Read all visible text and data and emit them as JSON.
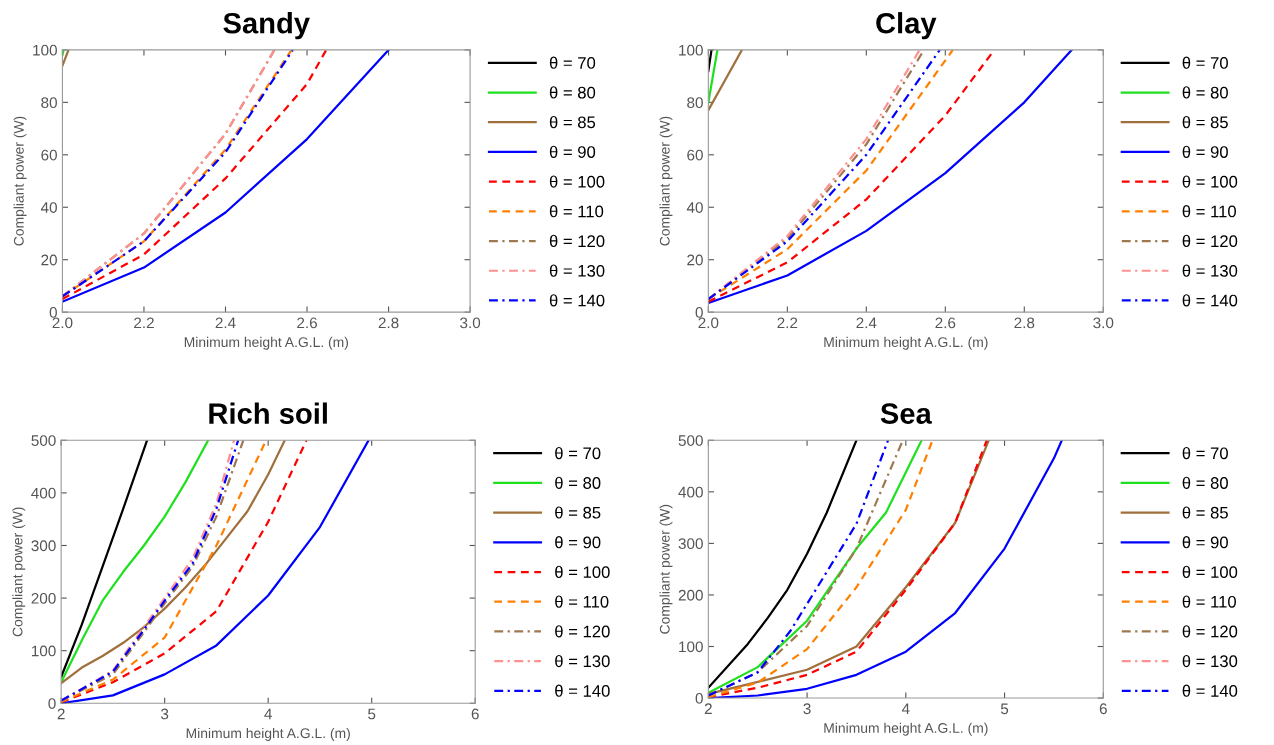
{
  "chart_data": [
    {
      "type": "line",
      "title": "Sandy",
      "xlabel": "Minimum height A.G.L. (m)",
      "ylabel": "Compliant power (W)",
      "xlim": [
        2.0,
        3.0
      ],
      "ylim": [
        0,
        100
      ],
      "xticks": [
        {
          "value": 2.0,
          "label": "2.0"
        },
        {
          "value": 2.2,
          "label": "2.2"
        },
        {
          "value": 2.4,
          "label": "2.4"
        },
        {
          "value": 2.6,
          "label": "2.6"
        },
        {
          "value": 2.8,
          "label": "2.8"
        },
        {
          "value": 3.0,
          "label": "3.0"
        }
      ],
      "yticks": [
        0,
        20,
        40,
        60,
        80,
        100
      ],
      "grid": false,
      "legend": "right",
      "series": [
        {
          "name": "θ = 70",
          "color": "#000000",
          "line_style": "solid"
        },
        {
          "name": "θ = 80",
          "color": "#1ee01e",
          "line_style": "solid",
          "x": [
            2.0,
            2.003
          ],
          "values": [
            98,
            100
          ]
        },
        {
          "name": "θ = 85",
          "color": "#a0703c",
          "line_style": "solid",
          "x": [
            2.0,
            2.015
          ],
          "values": [
            94,
            100
          ]
        },
        {
          "name": "θ = 90",
          "color": "#0000ff",
          "line_style": "solid",
          "x": [
            2.0,
            2.2,
            2.4,
            2.6,
            2.8
          ],
          "values": [
            4,
            17,
            38,
            66,
            100
          ]
        },
        {
          "name": "θ = 100",
          "color": "#ff0000",
          "line_style": "dashed",
          "x": [
            2.0,
            2.2,
            2.4,
            2.6,
            2.647
          ],
          "values": [
            5,
            22,
            51,
            87,
            100
          ]
        },
        {
          "name": "θ = 110",
          "color": "#ff8000",
          "line_style": "dashed",
          "x": [
            2.0,
            2.2,
            2.4,
            2.562
          ],
          "values": [
            6,
            27,
            62,
            100
          ]
        },
        {
          "name": "θ = 120",
          "color": "#a07850",
          "line_style": "dashdot",
          "x": [
            2.0,
            2.2,
            2.4,
            2.52
          ],
          "values": [
            6,
            30,
            68,
            100
          ]
        },
        {
          "name": "θ = 130",
          "color": "#ff9090",
          "line_style": "dashdot",
          "x": [
            2.0,
            2.2,
            2.4,
            2.52
          ],
          "values": [
            6,
            30,
            68,
            100
          ]
        },
        {
          "name": "θ = 140",
          "color": "#0000ff",
          "line_style": "dashdot",
          "x": [
            2.0,
            2.2,
            2.4,
            2.565
          ],
          "values": [
            6,
            27,
            61,
            100
          ]
        }
      ]
    },
    {
      "type": "line",
      "title": "Clay",
      "xlabel": "Minimum height A.G.L. (m)",
      "ylabel": "Compliant power (W)",
      "xlim": [
        2.0,
        3.0
      ],
      "ylim": [
        0,
        100
      ],
      "xticks": [
        {
          "value": 2.0,
          "label": "2.0"
        },
        {
          "value": 2.2,
          "label": "2.2"
        },
        {
          "value": 2.4,
          "label": "2.4"
        },
        {
          "value": 2.6,
          "label": "2.6"
        },
        {
          "value": 2.8,
          "label": "2.8"
        },
        {
          "value": 3.0,
          "label": "3.0"
        }
      ],
      "yticks": [
        0,
        20,
        40,
        60,
        80,
        100
      ],
      "grid": false,
      "legend": "right",
      "series": [
        {
          "name": "θ = 70",
          "color": "#000000",
          "line_style": "solid",
          "x": [
            2.0,
            2.008
          ],
          "values": [
            92,
            100
          ]
        },
        {
          "name": "θ = 80",
          "color": "#1ee01e",
          "line_style": "solid",
          "x": [
            2.0,
            2.023
          ],
          "values": [
            80,
            100
          ]
        },
        {
          "name": "θ = 85",
          "color": "#a0703c",
          "line_style": "solid",
          "x": [
            2.0,
            2.085
          ],
          "values": [
            77,
            100
          ]
        },
        {
          "name": "θ = 90",
          "color": "#0000ff",
          "line_style": "solid",
          "x": [
            2.0,
            2.2,
            2.4,
            2.6,
            2.8,
            2.92
          ],
          "values": [
            3.5,
            14,
            31,
            53,
            80,
            100
          ]
        },
        {
          "name": "θ = 100",
          "color": "#ff0000",
          "line_style": "dashed",
          "x": [
            2.0,
            2.2,
            2.4,
            2.6,
            2.724
          ],
          "values": [
            4,
            19,
            43,
            75,
            100
          ]
        },
        {
          "name": "θ = 110",
          "color": "#ff8000",
          "line_style": "dashed",
          "x": [
            2.0,
            2.2,
            2.4,
            2.619
          ],
          "values": [
            5,
            24,
            54,
            100
          ]
        },
        {
          "name": "θ = 120",
          "color": "#a07850",
          "line_style": "dashdot",
          "x": [
            2.0,
            2.2,
            2.4,
            2.546
          ],
          "values": [
            5,
            28,
            64,
            100
          ]
        },
        {
          "name": "θ = 130",
          "color": "#ff9090",
          "line_style": "dashdot",
          "x": [
            2.0,
            2.2,
            2.4,
            2.535
          ],
          "values": [
            5,
            29,
            66,
            100
          ]
        },
        {
          "name": "θ = 140",
          "color": "#0000ff",
          "line_style": "dashdot",
          "x": [
            2.0,
            2.2,
            2.4,
            2.586
          ],
          "values": [
            5,
            27,
            60,
            100
          ]
        }
      ]
    },
    {
      "type": "line",
      "title": "Rich soil",
      "xlabel": "Minimum height A.G.L. (m)",
      "ylabel": "Compliant power (W)",
      "xlim": [
        2,
        6
      ],
      "ylim": [
        0,
        500
      ],
      "xticks": [
        2,
        3,
        4,
        5,
        6
      ],
      "yticks": [
        0,
        100,
        200,
        300,
        400,
        500
      ],
      "grid": false,
      "legend": "right",
      "series": [
        {
          "name": "θ = 70",
          "color": "#000000",
          "line_style": "solid",
          "x": [
            2.0,
            2.2,
            2.4,
            2.6,
            2.83
          ],
          "values": [
            50,
            150,
            260,
            370,
            500
          ]
        },
        {
          "name": "θ = 80",
          "color": "#1ee01e",
          "line_style": "solid",
          "x": [
            2.0,
            2.2,
            2.4,
            2.6,
            2.8,
            3.0,
            3.2,
            3.42
          ],
          "values": [
            40,
            120,
            195,
            250,
            300,
            355,
            420,
            500
          ]
        },
        {
          "name": "θ = 85",
          "color": "#a0703c",
          "line_style": "solid",
          "x": [
            2.0,
            2.2,
            2.4,
            2.6,
            2.8,
            3.0,
            3.2,
            3.4,
            3.6,
            3.8,
            4.0,
            4.16
          ],
          "values": [
            38,
            68,
            90,
            115,
            145,
            180,
            220,
            265,
            315,
            365,
            435,
            500
          ]
        },
        {
          "name": "θ = 90",
          "color": "#0000ff",
          "line_style": "solid",
          "x": [
            2.0,
            2.5,
            3.0,
            3.5,
            4.0,
            4.5,
            4.97
          ],
          "values": [
            0,
            15,
            55,
            110,
            205,
            335,
            500
          ]
        },
        {
          "name": "θ = 100",
          "color": "#ff0000",
          "line_style": "dashed",
          "x": [
            2.0,
            2.5,
            3.0,
            3.5,
            4.0,
            4.37
          ],
          "values": [
            2,
            40,
            95,
            175,
            345,
            500
          ]
        },
        {
          "name": "θ = 110",
          "color": "#ff8000",
          "line_style": "dashed",
          "x": [
            2.0,
            2.5,
            3.0,
            3.5,
            3.98
          ],
          "values": [
            3,
            45,
            125,
            300,
            500
          ]
        },
        {
          "name": "θ = 120",
          "color": "#a07850",
          "line_style": "dashdot",
          "x": [
            2.0,
            2.5,
            2.8,
            3.0,
            3.27,
            3.5,
            3.76
          ],
          "values": [
            5,
            55,
            135,
            190,
            260,
            355,
            500
          ]
        },
        {
          "name": "θ = 130",
          "color": "#ff9090",
          "line_style": "dashdot",
          "x": [
            2.0,
            2.5,
            2.8,
            3.0,
            3.27,
            3.5,
            3.67
          ],
          "values": [
            5,
            62,
            145,
            200,
            275,
            380,
            500
          ]
        },
        {
          "name": "θ = 140",
          "color": "#0000ff",
          "line_style": "dashdot",
          "x": [
            2.0,
            2.5,
            2.8,
            3.0,
            3.27,
            3.5,
            3.71
          ],
          "values": [
            5,
            60,
            140,
            195,
            266,
            370,
            500
          ]
        }
      ]
    },
    {
      "type": "line",
      "title": "Sea",
      "xlabel": "Minimum height A.G.L. (m)",
      "ylabel": "Compliant power (W)",
      "xlim": [
        2,
        6
      ],
      "ylim": [
        0,
        500
      ],
      "xticks": [
        2,
        3,
        4,
        5,
        6
      ],
      "yticks": [
        0,
        100,
        200,
        300,
        400,
        500
      ],
      "grid": false,
      "legend": "right",
      "series": [
        {
          "name": "θ = 70",
          "color": "#000000",
          "line_style": "solid",
          "x": [
            2.0,
            2.4,
            2.6,
            2.8,
            3.0,
            3.2,
            3.5
          ],
          "values": [
            20,
            105,
            155,
            210,
            280,
            360,
            500
          ]
        },
        {
          "name": "θ = 80",
          "color": "#1ee01e",
          "line_style": "solid",
          "x": [
            2.0,
            2.5,
            3.0,
            3.5,
            3.8,
            4.16
          ],
          "values": [
            10,
            60,
            150,
            290,
            360,
            500
          ]
        },
        {
          "name": "θ = 85",
          "color": "#a0703c",
          "line_style": "solid",
          "x": [
            2.0,
            3.0,
            3.5,
            4.0,
            4.5,
            4.84
          ],
          "values": [
            8,
            55,
            100,
            215,
            340,
            500
          ]
        },
        {
          "name": "θ = 90",
          "color": "#0000ff",
          "line_style": "solid",
          "x": [
            2.0,
            2.5,
            3.0,
            3.5,
            4.0,
            4.5,
            5.0,
            5.5,
            5.58
          ],
          "values": [
            0,
            5,
            18,
            45,
            90,
            165,
            290,
            465,
            500
          ]
        },
        {
          "name": "θ = 100",
          "color": "#ff0000",
          "line_style": "dashed",
          "x": [
            2.0,
            2.5,
            3.0,
            3.5,
            4.0,
            4.5,
            4.82
          ],
          "values": [
            2,
            20,
            45,
            90,
            210,
            340,
            500
          ]
        },
        {
          "name": "θ = 110",
          "color": "#ff8000",
          "line_style": "dashed",
          "x": [
            2.0,
            2.5,
            3.0,
            3.5,
            4.0,
            4.27
          ],
          "values": [
            2,
            30,
            95,
            215,
            365,
            500
          ]
        },
        {
          "name": "θ = 120",
          "color": "#a07850",
          "line_style": "dashdot",
          "x": [
            2.0,
            2.5,
            3.0,
            3.5,
            3.97
          ],
          "values": [
            5,
            50,
            140,
            290,
            500
          ]
        },
        {
          "name": "θ = 130",
          "color": "#ff9090",
          "line_style": "dashdot"
        },
        {
          "name": "θ = 140",
          "color": "#0000ff",
          "line_style": "dashdot",
          "x": [
            2.0,
            2.5,
            2.83,
            3.5,
            3.82
          ],
          "values": [
            5,
            50,
            130,
            338,
            500
          ]
        }
      ]
    }
  ]
}
